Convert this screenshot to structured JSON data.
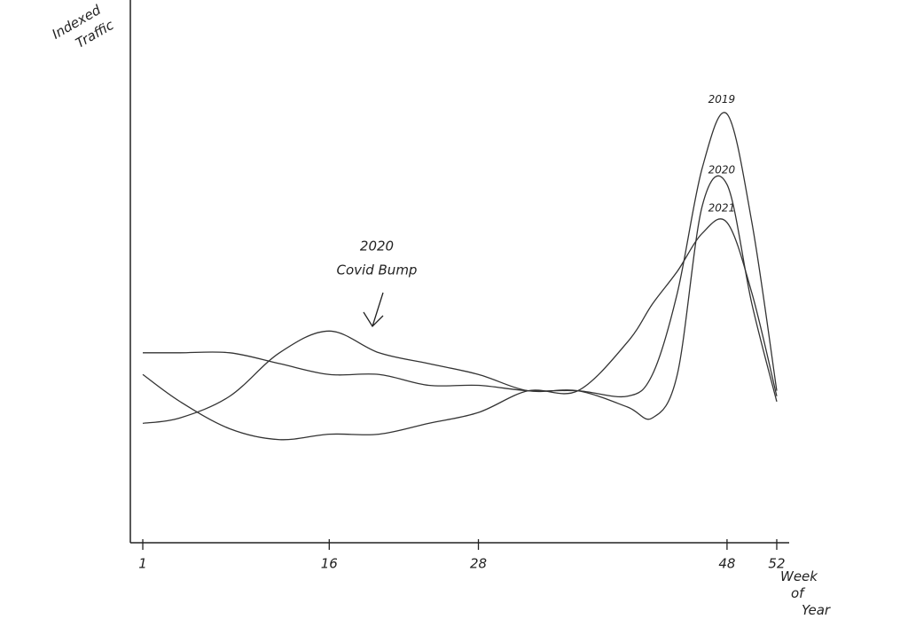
{
  "chart_data": {
    "type": "line",
    "ylabel": "Indexed Traffic",
    "xlabel": "Week of Year",
    "annotation": [
      "2020",
      "Covid Bump"
    ],
    "x": [
      1,
      4,
      8,
      12,
      16,
      20,
      24,
      28,
      32,
      36,
      40,
      42,
      44,
      46,
      48,
      50,
      52
    ],
    "series": [
      {
        "name": "2019",
        "color": "#333333",
        "values": [
          35,
          35,
          35,
          33,
          31,
          31,
          29,
          29,
          28,
          28,
          27,
          31,
          46,
          69,
          79,
          59,
          28
        ]
      },
      {
        "name": "2020",
        "color": "#333333",
        "values": [
          22,
          23,
          27,
          35,
          39,
          35,
          33,
          31,
          28,
          28,
          25,
          23,
          31,
          62,
          66,
          44,
          26
        ]
      },
      {
        "name": "2021",
        "color": "#333333",
        "values": [
          31,
          26,
          21,
          19,
          20,
          20,
          22,
          24,
          28,
          28,
          37,
          44,
          50,
          57,
          59,
          46,
          27
        ]
      }
    ],
    "xlim": [
      0,
      53
    ],
    "xticks": [
      1,
      16,
      28,
      48,
      52
    ],
    "ylim": [
      0,
      100
    ],
    "grid": false
  }
}
